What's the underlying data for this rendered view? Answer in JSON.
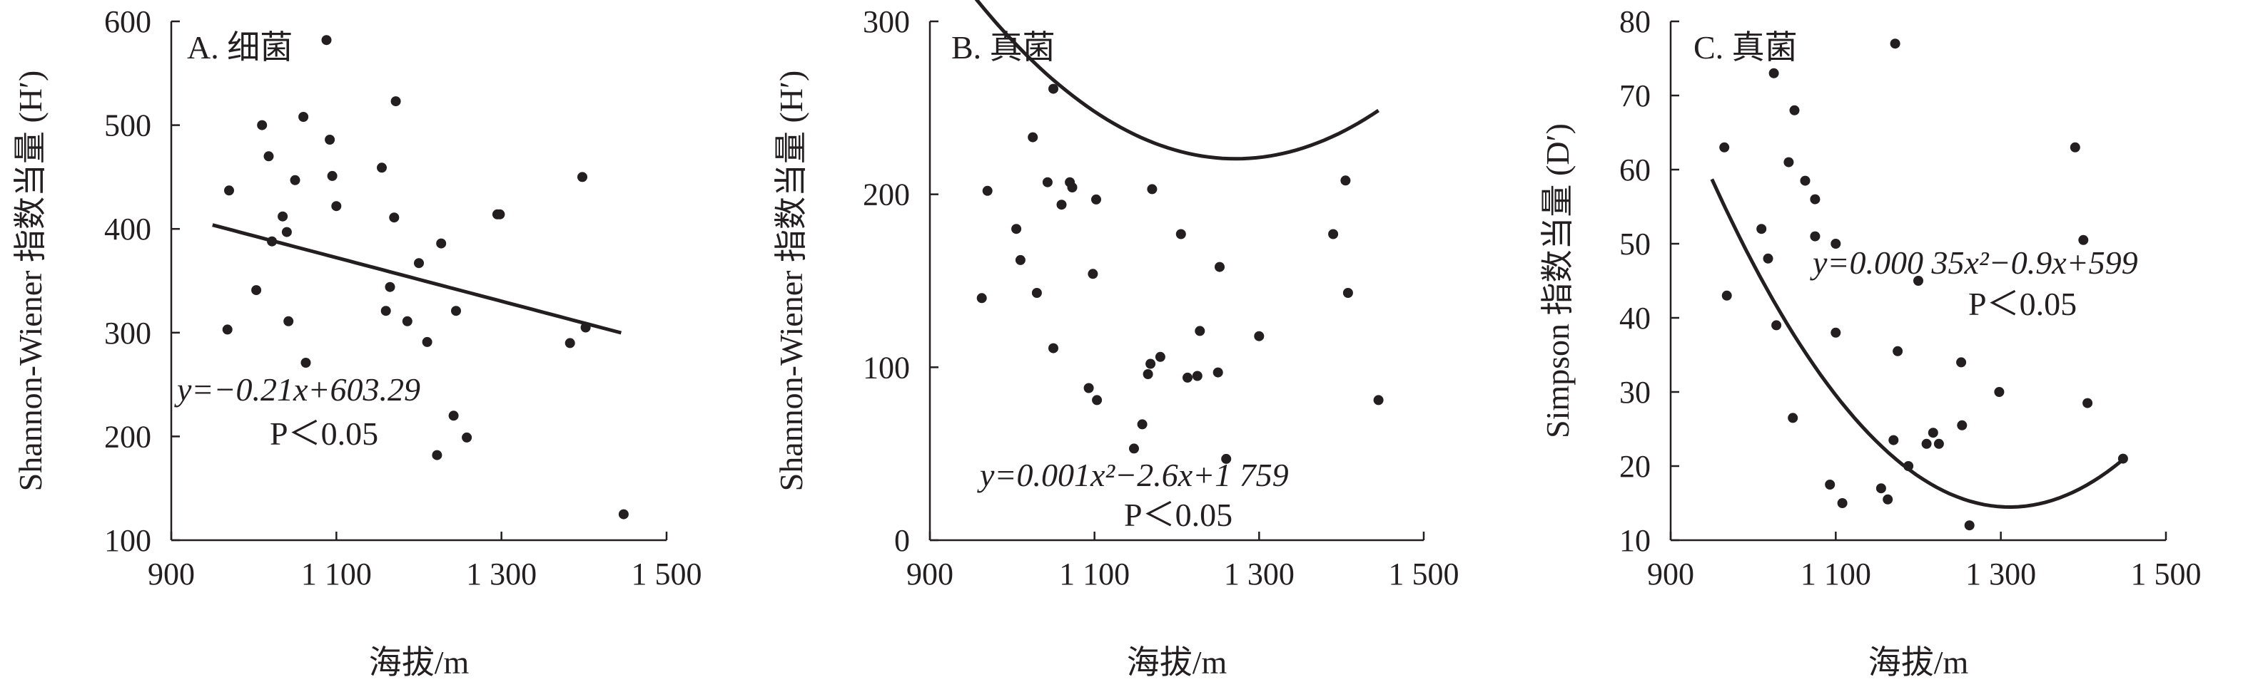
{
  "colors": {
    "ink": "#231f20",
    "background": "#ffffff"
  },
  "chart_data": [
    {
      "type": "scatter",
      "panel_label": "A. 细菌",
      "xlabel": "海拔/m",
      "ylabel": "Shannon-Wiener 指数当量 (H′)",
      "xlim": [
        900,
        1500
      ],
      "ylim": [
        100,
        600
      ],
      "xticks": [
        "900",
        "1 100",
        "1 300",
        "1 500"
      ],
      "yticks": [
        "100",
        "200",
        "300",
        "400",
        "500",
        "600"
      ],
      "grid": false,
      "equation": "y=−0.21x+603.29",
      "significance": "P＜0.05",
      "trend": {
        "type": "linear",
        "coefficients": [
          603.29,
          -0.21
        ],
        "xrange": [
          950,
          1445
        ]
      },
      "points": [
        [
          968,
          303
        ],
        [
          970,
          437
        ],
        [
          1003,
          341
        ],
        [
          1010,
          500
        ],
        [
          1018,
          470
        ],
        [
          1022,
          388
        ],
        [
          1035,
          412
        ],
        [
          1040,
          397
        ],
        [
          1042,
          311
        ],
        [
          1050,
          447
        ],
        [
          1060,
          508
        ],
        [
          1063,
          271
        ],
        [
          1088,
          582
        ],
        [
          1092,
          486
        ],
        [
          1095,
          451
        ],
        [
          1100,
          422
        ],
        [
          1155,
          459
        ],
        [
          1160,
          321
        ],
        [
          1165,
          344
        ],
        [
          1170,
          411
        ],
        [
          1172,
          523
        ],
        [
          1186,
          311
        ],
        [
          1200,
          367
        ],
        [
          1210,
          291
        ],
        [
          1222,
          182
        ],
        [
          1227,
          386
        ],
        [
          1242,
          220
        ],
        [
          1245,
          321
        ],
        [
          1258,
          199
        ],
        [
          1295,
          414
        ],
        [
          1298,
          414
        ],
        [
          1383,
          290
        ],
        [
          1398,
          450
        ],
        [
          1402,
          305
        ],
        [
          1448,
          125
        ]
      ]
    },
    {
      "type": "scatter",
      "panel_label": "B. 真菌",
      "xlabel": "海拔/m",
      "ylabel": "Shannon-Wiener 指数当量 (H′)",
      "xlim": [
        900,
        1500
      ],
      "ylim": [
        0,
        300
      ],
      "xticks": [
        "900",
        "1 100",
        "1 300",
        "1 500"
      ],
      "yticks": [
        "0",
        "100",
        "200",
        "300"
      ],
      "grid": false,
      "equation": "y=0.001x²−2.6x+1 759",
      "significance": "P＜0.05",
      "trend": {
        "type": "quadratic",
        "coefficients": [
          1721,
          -2.36,
          0.000928
        ],
        "xrange": [
          950,
          1445
        ]
      },
      "points": [
        [
          963,
          140
        ],
        [
          970,
          202
        ],
        [
          1005,
          180
        ],
        [
          1010,
          162
        ],
        [
          1025,
          233
        ],
        [
          1030,
          143
        ],
        [
          1043,
          207
        ],
        [
          1050,
          261
        ],
        [
          1050,
          111
        ],
        [
          1060,
          194
        ],
        [
          1070,
          207
        ],
        [
          1073,
          204
        ],
        [
          1093,
          88
        ],
        [
          1098,
          154
        ],
        [
          1102,
          197
        ],
        [
          1103,
          81
        ],
        [
          1148,
          53
        ],
        [
          1158,
          67
        ],
        [
          1165,
          96
        ],
        [
          1168,
          102
        ],
        [
          1170,
          203
        ],
        [
          1180,
          106
        ],
        [
          1205,
          177
        ],
        [
          1213,
          94
        ],
        [
          1225,
          95
        ],
        [
          1228,
          121
        ],
        [
          1250,
          97
        ],
        [
          1252,
          158
        ],
        [
          1260,
          47
        ],
        [
          1300,
          118
        ],
        [
          1390,
          177
        ],
        [
          1405,
          208
        ],
        [
          1408,
          143
        ],
        [
          1445,
          81
        ]
      ]
    },
    {
      "type": "scatter",
      "panel_label": "C. 真菌",
      "xlabel": "海拔/m",
      "ylabel": "Simpson 指数当量 (D′)",
      "xlim": [
        900,
        1500
      ],
      "ylim": [
        10,
        80
      ],
      "xticks": [
        "900",
        "1 100",
        "1 300",
        "1 500"
      ],
      "yticks": [
        "10",
        "20",
        "30",
        "40",
        "50",
        "60",
        "70",
        "80"
      ],
      "grid": false,
      "equation": "y=0.000 35x²−0.9x+599",
      "significance": "P＜0.05",
      "trend": {
        "type": "quadratic",
        "coefficients": [
          598.6,
          -0.8913,
          0.00034
        ],
        "xrange": [
          950,
          1445
        ]
      },
      "points": [
        [
          965,
          63
        ],
        [
          968,
          43
        ],
        [
          1010,
          52
        ],
        [
          1018,
          48
        ],
        [
          1025,
          73
        ],
        [
          1028,
          39
        ],
        [
          1043,
          61
        ],
        [
          1048,
          26.5
        ],
        [
          1050,
          68
        ],
        [
          1063,
          58.5
        ],
        [
          1075,
          56
        ],
        [
          1075,
          51
        ],
        [
          1093,
          17.5
        ],
        [
          1100,
          38
        ],
        [
          1100,
          50
        ],
        [
          1108,
          15
        ],
        [
          1155,
          17
        ],
        [
          1163,
          15.5
        ],
        [
          1170,
          23.5
        ],
        [
          1172,
          77
        ],
        [
          1175,
          35.5
        ],
        [
          1188,
          20
        ],
        [
          1200,
          45
        ],
        [
          1210,
          23
        ],
        [
          1218,
          24.5
        ],
        [
          1225,
          23
        ],
        [
          1252,
          34
        ],
        [
          1253,
          25.5
        ],
        [
          1262,
          12
        ],
        [
          1298,
          30
        ],
        [
          1390,
          63
        ],
        [
          1400,
          50.5
        ],
        [
          1405,
          28.5
        ],
        [
          1448,
          21
        ]
      ]
    }
  ]
}
